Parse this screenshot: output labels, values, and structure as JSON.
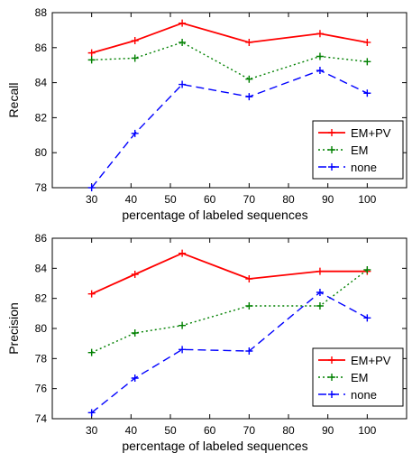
{
  "chart_data": [
    {
      "type": "line",
      "xlabel": "percentage of labeled sequences",
      "ylabel": "Recall",
      "xlim": [
        20,
        110
      ],
      "ylim": [
        78,
        88
      ],
      "xticks": [
        30,
        40,
        50,
        60,
        70,
        80,
        90,
        100
      ],
      "yticks": [
        78,
        80,
        82,
        84,
        86,
        88
      ],
      "grid": false,
      "legend_position": "bottom-right",
      "x": [
        30,
        41,
        53,
        70,
        88,
        100
      ],
      "series": [
        {
          "name": "EM+PV",
          "color": "#ff0000",
          "style": "solid",
          "values": [
            85.7,
            86.4,
            87.4,
            86.3,
            86.8,
            86.3
          ]
        },
        {
          "name": "EM",
          "color": "#008000",
          "style": "dotted",
          "values": [
            85.3,
            85.4,
            86.3,
            84.2,
            85.5,
            85.2
          ]
        },
        {
          "name": "none",
          "color": "#0000ff",
          "style": "dashed",
          "values": [
            78.0,
            81.1,
            83.9,
            83.2,
            84.7,
            83.4
          ]
        }
      ]
    },
    {
      "type": "line",
      "xlabel": "percentage of labeled sequences",
      "ylabel": "Precision",
      "xlim": [
        20,
        110
      ],
      "ylim": [
        74,
        86
      ],
      "xticks": [
        30,
        40,
        50,
        60,
        70,
        80,
        90,
        100
      ],
      "yticks": [
        74,
        76,
        78,
        80,
        82,
        84,
        86
      ],
      "grid": false,
      "legend_position": "bottom-right",
      "x": [
        30,
        41,
        53,
        70,
        88,
        100
      ],
      "series": [
        {
          "name": "EM+PV",
          "color": "#ff0000",
          "style": "solid",
          "values": [
            82.3,
            83.6,
            85.0,
            83.3,
            83.8,
            83.8
          ]
        },
        {
          "name": "EM",
          "color": "#008000",
          "style": "dotted",
          "values": [
            78.4,
            79.7,
            80.2,
            81.5,
            81.5,
            83.9
          ]
        },
        {
          "name": "none",
          "color": "#0000ff",
          "style": "dashed",
          "values": [
            74.4,
            76.7,
            78.6,
            78.5,
            82.4,
            80.7
          ]
        }
      ]
    }
  ]
}
